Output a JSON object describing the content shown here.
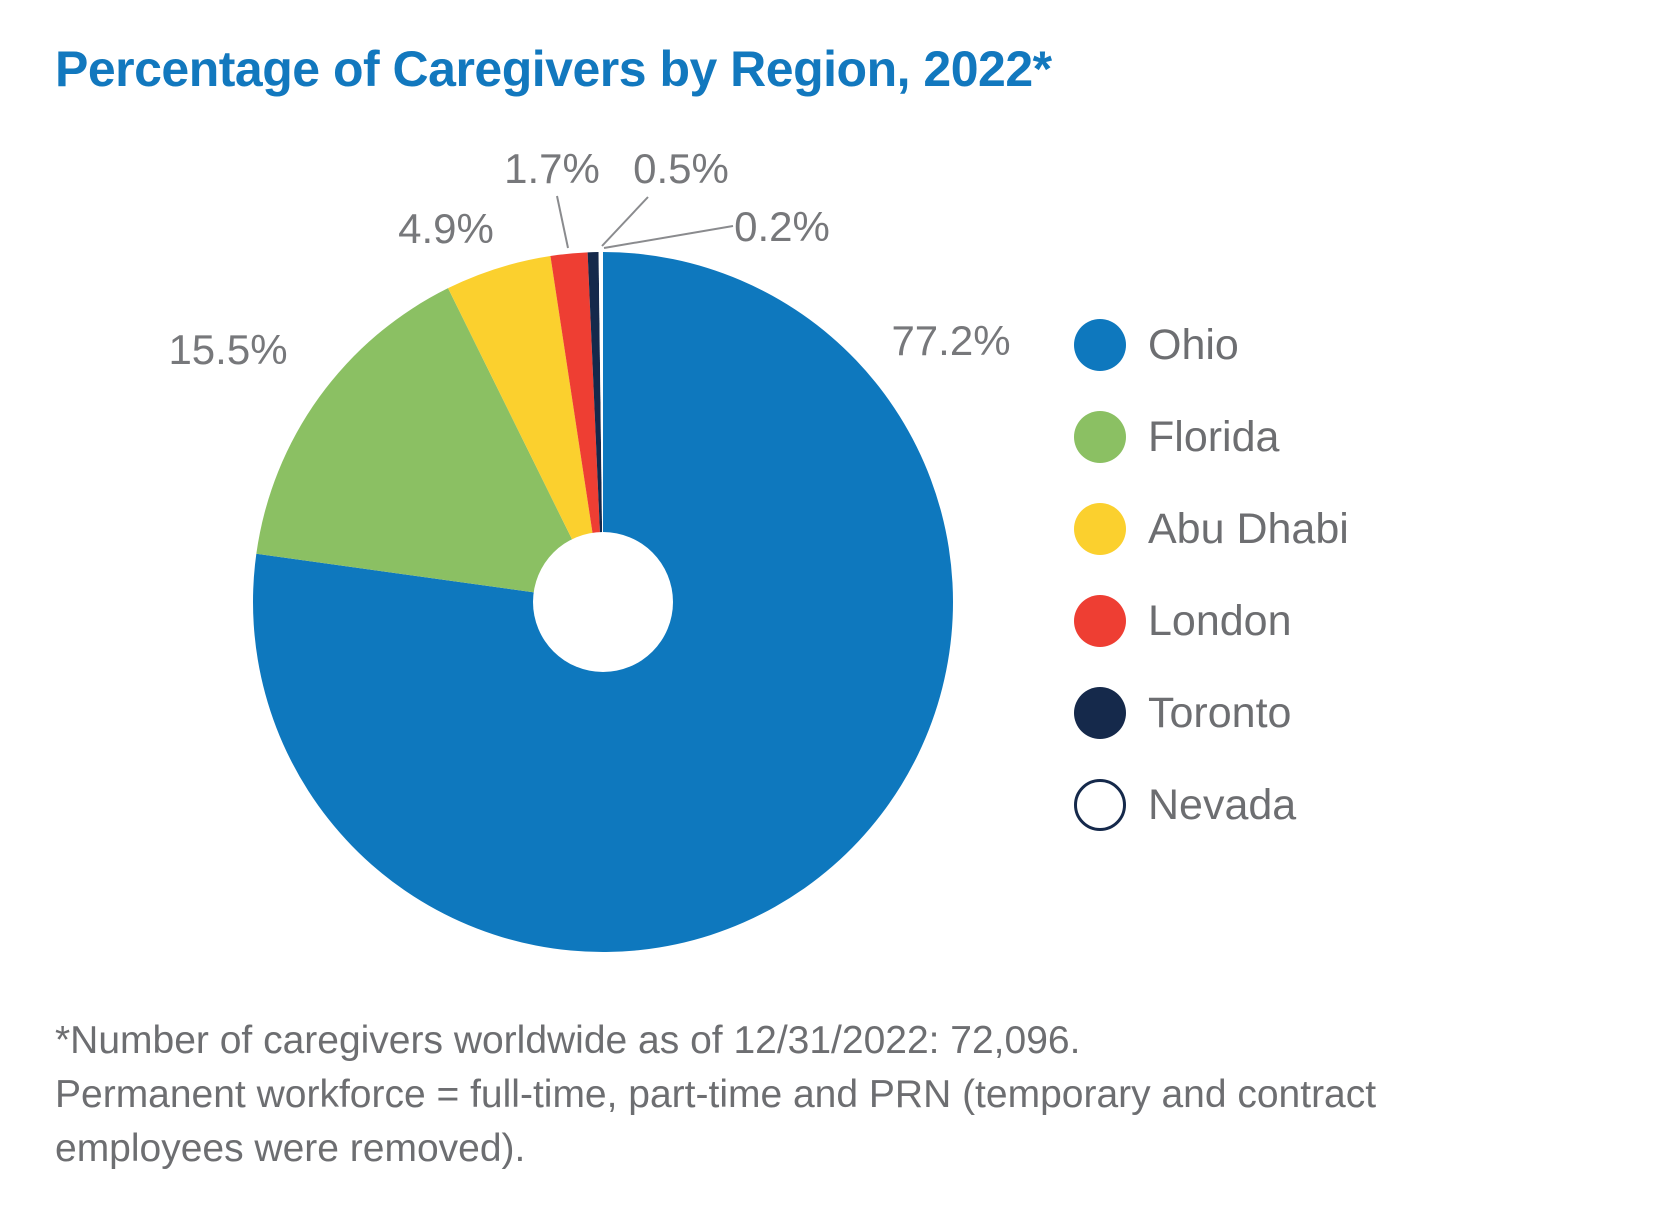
{
  "page_title": "Percentage of Caregivers by Region, 2022*",
  "chart_data": {
    "type": "pie",
    "donut": true,
    "title": "Percentage of Caregivers by Region, 2022*",
    "legend_position": "right",
    "start_angle_deg": 0,
    "direction": "clockwise-from-top",
    "slices": [
      {
        "name": "Ohio",
        "value": 77.2,
        "pct_label": "77.2%",
        "color": "#0E78BE"
      },
      {
        "name": "Florida",
        "value": 15.5,
        "pct_label": "15.5%",
        "color": "#8BC063"
      },
      {
        "name": "Abu Dhabi",
        "value": 4.9,
        "pct_label": "4.9%",
        "color": "#FBD02E"
      },
      {
        "name": "London",
        "value": 1.7,
        "pct_label": "1.7%",
        "color": "#EE3E33"
      },
      {
        "name": "Toronto",
        "value": 0.5,
        "pct_label": "0.5%",
        "color": "#15294B"
      },
      {
        "name": "Nevada",
        "value": 0.2,
        "pct_label": "0.2%",
        "color": "#FFFFFF",
        "border_color": "#15294B"
      }
    ]
  },
  "footnote": {
    "line1": "*Number of caregivers worldwide as of 12/31/2022: 72,096.",
    "line2": "Permanent workforce = full-time, part-time and PRN (temporary and contract",
    "line3": "employees were removed)."
  },
  "colors": {
    "title_blue": "#1278BE",
    "legend_text_gray": "#6D6E71",
    "pct_label_gray": "#77787B",
    "footnote_gray": "#6D6E71",
    "leader_line_gray": "#8A8B8E"
  }
}
